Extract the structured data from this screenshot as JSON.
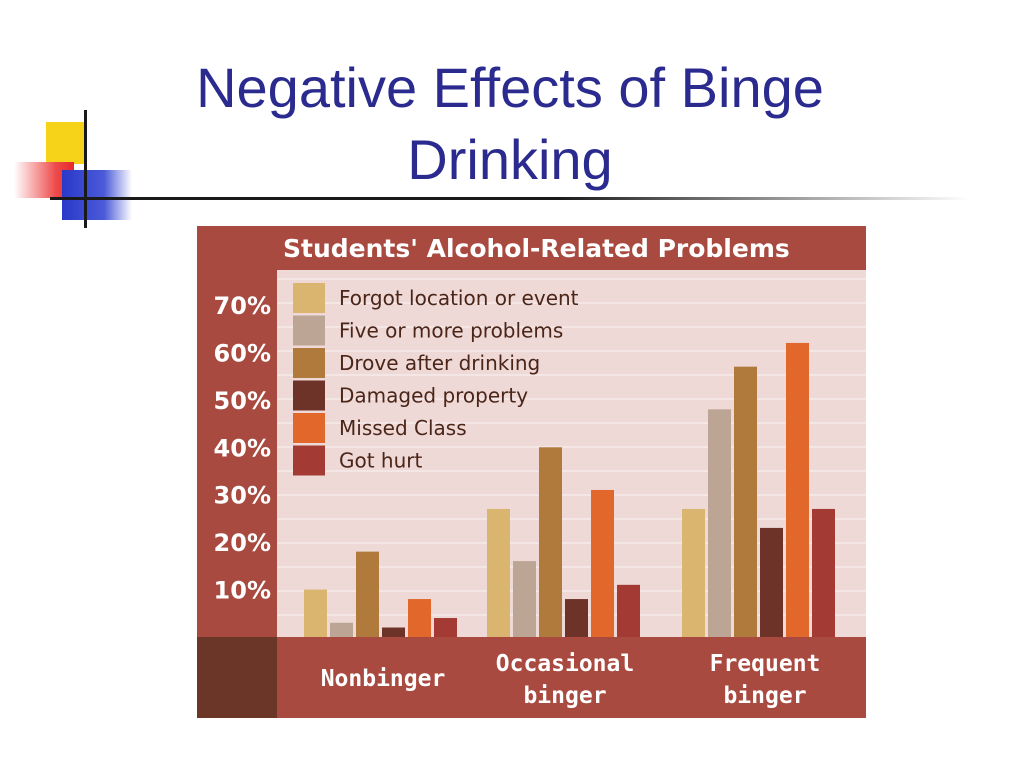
{
  "slide": {
    "title": "Negative Effects of Binge Drinking"
  },
  "chart_data": {
    "type": "bar",
    "title": "Students' Alcohol-Related Problems",
    "categories": [
      "Nonbinger",
      "Occasional binger",
      "Frequent binger"
    ],
    "category_lines": [
      [
        "Nonbinger"
      ],
      [
        "Occasional",
        "binger"
      ],
      [
        "Frequent",
        "binger"
      ]
    ],
    "yticks": [
      "10%",
      "20%",
      "30%",
      "40%",
      "50%",
      "60%",
      "70%"
    ],
    "ylim": [
      0,
      75
    ],
    "legend_position": "top-left",
    "series": [
      {
        "name": "Forgot location or event",
        "color": "#d9b570",
        "values": [
          10,
          27,
          27
        ]
      },
      {
        "name": "Five or more problems",
        "color": "#bda595",
        "values": [
          3,
          16,
          48
        ]
      },
      {
        "name": "Drove after drinking",
        "color": "#b07a3c",
        "values": [
          18,
          40,
          57
        ]
      },
      {
        "name": "Damaged property",
        "color": "#6e3328",
        "values": [
          2,
          8,
          23
        ]
      },
      {
        "name": "Missed Class",
        "color": "#e2672b",
        "values": [
          8,
          31,
          62
        ]
      },
      {
        "name": "Got hurt",
        "color": "#a33a34",
        "values": [
          4,
          11,
          27
        ]
      }
    ],
    "colors": {
      "header_bg": "#a94a40",
      "axis_bg": "#a94a40",
      "corner_bg": "#6b3527",
      "plot_bg": "#eed9d6",
      "text": "#ffffff",
      "legend_text": "#4a2518"
    }
  }
}
